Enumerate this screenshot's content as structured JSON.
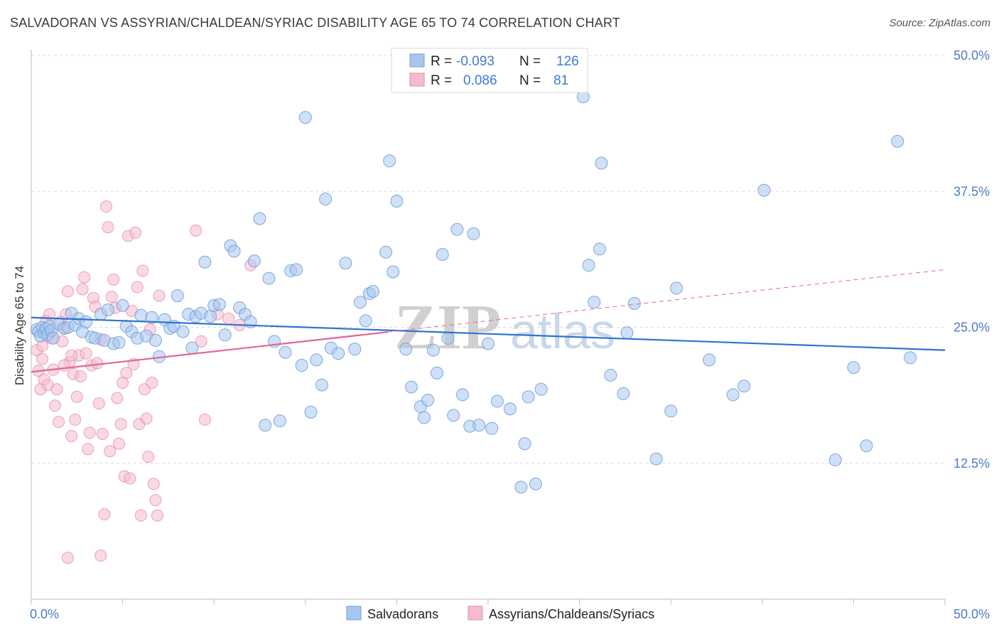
{
  "title": "SALVADORAN VS ASSYRIAN/CHALDEAN/SYRIAC DISABILITY AGE 65 TO 74 CORRELATION CHART",
  "source": "Source: ZipAtlas.com",
  "watermark": {
    "part1": "ZIP",
    "part2": "atlas"
  },
  "colors": {
    "blue": "#6fa0dc",
    "blue_fill": "#a9c6ee",
    "blue_line": "#2f73d0",
    "pink": "#e88aa8",
    "pink_fill": "#f4bccd",
    "pink_line": "#e0679a",
    "tick_text": "#4b7bc8"
  },
  "legend": {
    "rows": [
      {
        "r_label": "R =",
        "r_value": "-0.093",
        "n_label": "N =",
        "n_value": "126"
      },
      {
        "r_label": "R =",
        "r_value": "0.086",
        "n_label": "N =",
        "n_value": "81"
      }
    ]
  },
  "bottom_legend": [
    "Salvadorans",
    "Assyrians/Chaldeans/Syriacs"
  ],
  "chart_data": {
    "type": "scatter",
    "title": "SALVADORAN VS ASSYRIAN/CHALDEAN/SYRIAC DISABILITY AGE 65 TO 74 CORRELATION CHART",
    "xlabel": "",
    "ylabel": "Disability Age 65 to 74",
    "xlim": [
      0,
      50
    ],
    "ylim": [
      0,
      50
    ],
    "x_tick_labels": [
      "0.0%",
      "50.0%"
    ],
    "y_tick_labels": [
      "12.5%",
      "25.0%",
      "37.5%",
      "50.0%"
    ],
    "y_ticks": [
      12.5,
      25.0,
      37.5,
      50.0
    ],
    "grid": true,
    "legend_position": "top-center",
    "series": [
      {
        "name": "Salvadorans",
        "color": "#6fa0dc",
        "trend": {
          "x": [
            0,
            50
          ],
          "y": [
            25.9,
            22.9
          ],
          "solid_until": 50
        },
        "points": [
          [
            0.3,
            24.8
          ],
          [
            0.4,
            24.6
          ],
          [
            0.5,
            24.2
          ],
          [
            0.6,
            25.0
          ],
          [
            0.7,
            24.5
          ],
          [
            0.8,
            24.9
          ],
          [
            0.9,
            24.3
          ],
          [
            1.0,
            25.1
          ],
          [
            1.1,
            24.7
          ],
          [
            1.2,
            24.0
          ],
          [
            1.5,
            25.3
          ],
          [
            1.8,
            24.9
          ],
          [
            2.0,
            25.0
          ],
          [
            2.2,
            26.3
          ],
          [
            2.4,
            25.2
          ],
          [
            2.6,
            25.8
          ],
          [
            2.8,
            24.6
          ],
          [
            3.0,
            25.5
          ],
          [
            3.3,
            24.1
          ],
          [
            3.5,
            24.0
          ],
          [
            3.8,
            26.2
          ],
          [
            4.0,
            23.8
          ],
          [
            4.2,
            26.6
          ],
          [
            4.5,
            23.5
          ],
          [
            4.8,
            23.6
          ],
          [
            5.0,
            27.0
          ],
          [
            5.2,
            25.1
          ],
          [
            5.5,
            24.6
          ],
          [
            5.8,
            24.0
          ],
          [
            6.0,
            26.1
          ],
          [
            6.3,
            24.2
          ],
          [
            6.6,
            25.9
          ],
          [
            6.8,
            23.8
          ],
          [
            7.0,
            22.3
          ],
          [
            7.3,
            25.7
          ],
          [
            7.6,
            24.9
          ],
          [
            7.8,
            25.1
          ],
          [
            8.0,
            27.9
          ],
          [
            8.3,
            24.6
          ],
          [
            8.6,
            26.2
          ],
          [
            8.8,
            23.1
          ],
          [
            9.0,
            26.0
          ],
          [
            9.3,
            26.3
          ],
          [
            9.5,
            31.0
          ],
          [
            9.8,
            26.0
          ],
          [
            10.0,
            27.0
          ],
          [
            10.3,
            27.1
          ],
          [
            10.6,
            24.3
          ],
          [
            10.9,
            32.5
          ],
          [
            11.1,
            32.0
          ],
          [
            11.4,
            26.8
          ],
          [
            11.7,
            26.2
          ],
          [
            12.0,
            25.5
          ],
          [
            12.2,
            31.1
          ],
          [
            12.5,
            35.0
          ],
          [
            12.8,
            16.0
          ],
          [
            13.0,
            29.5
          ],
          [
            13.3,
            23.7
          ],
          [
            13.6,
            16.4
          ],
          [
            13.9,
            22.7
          ],
          [
            14.2,
            30.2
          ],
          [
            14.5,
            30.3
          ],
          [
            14.8,
            21.5
          ],
          [
            15.0,
            44.3
          ],
          [
            15.3,
            17.2
          ],
          [
            15.6,
            22.0
          ],
          [
            15.9,
            19.7
          ],
          [
            16.1,
            36.8
          ],
          [
            16.4,
            23.1
          ],
          [
            16.8,
            22.6
          ],
          [
            17.2,
            30.9
          ],
          [
            17.7,
            23.0
          ],
          [
            18.0,
            27.3
          ],
          [
            18.3,
            25.6
          ],
          [
            18.5,
            28.1
          ],
          [
            18.7,
            28.3
          ],
          [
            19.4,
            31.9
          ],
          [
            19.6,
            40.3
          ],
          [
            19.8,
            30.1
          ],
          [
            20.0,
            36.6
          ],
          [
            20.5,
            23.0
          ],
          [
            20.8,
            19.5
          ],
          [
            21.3,
            17.7
          ],
          [
            21.5,
            16.7
          ],
          [
            21.7,
            18.3
          ],
          [
            22.0,
            22.9
          ],
          [
            22.2,
            20.8
          ],
          [
            22.5,
            31.7
          ],
          [
            22.8,
            24.0
          ],
          [
            23.1,
            16.9
          ],
          [
            23.3,
            34.0
          ],
          [
            23.6,
            18.8
          ],
          [
            24.0,
            15.9
          ],
          [
            24.2,
            33.6
          ],
          [
            24.5,
            16.0
          ],
          [
            25.0,
            23.5
          ],
          [
            25.2,
            15.7
          ],
          [
            25.5,
            18.2
          ],
          [
            26.2,
            17.5
          ],
          [
            26.8,
            10.3
          ],
          [
            27.0,
            14.3
          ],
          [
            27.2,
            18.6
          ],
          [
            27.6,
            10.6
          ],
          [
            27.9,
            19.3
          ],
          [
            28.0,
            49.8
          ],
          [
            30.2,
            46.2
          ],
          [
            30.5,
            30.7
          ],
          [
            30.8,
            27.3
          ],
          [
            31.1,
            32.2
          ],
          [
            31.2,
            40.1
          ],
          [
            31.7,
            20.6
          ],
          [
            32.4,
            18.9
          ],
          [
            32.6,
            24.5
          ],
          [
            33.0,
            27.2
          ],
          [
            34.2,
            12.9
          ],
          [
            35.0,
            17.3
          ],
          [
            35.3,
            28.6
          ],
          [
            37.1,
            22.0
          ],
          [
            38.4,
            18.8
          ],
          [
            39.0,
            19.6
          ],
          [
            40.1,
            37.6
          ],
          [
            44.0,
            12.8
          ],
          [
            45.0,
            21.3
          ],
          [
            45.7,
            14.1
          ],
          [
            47.4,
            42.1
          ],
          [
            48.1,
            22.2
          ]
        ]
      },
      {
        "name": "Assyrians/Chaldeans/Syriacs",
        "color": "#e88aa8",
        "trend": {
          "x": [
            0,
            50
          ],
          "y": [
            20.9,
            30.3
          ],
          "solid_until": 19.5
        },
        "points": [
          [
            0.3,
            22.9
          ],
          [
            0.4,
            21.0
          ],
          [
            0.5,
            19.3
          ],
          [
            0.6,
            22.1
          ],
          [
            0.7,
            20.2
          ],
          [
            0.8,
            25.6
          ],
          [
            0.9,
            19.7
          ],
          [
            1.0,
            26.2
          ],
          [
            1.1,
            24.0
          ],
          [
            1.2,
            21.1
          ],
          [
            1.3,
            17.8
          ],
          [
            1.4,
            19.3
          ],
          [
            1.5,
            16.3
          ],
          [
            1.6,
            25.5
          ],
          [
            1.7,
            23.7
          ],
          [
            1.8,
            24.9
          ],
          [
            1.9,
            26.2
          ],
          [
            2.0,
            28.3
          ],
          [
            2.1,
            21.8
          ],
          [
            2.2,
            15.0
          ],
          [
            2.3,
            20.7
          ],
          [
            2.4,
            16.5
          ],
          [
            2.5,
            18.6
          ],
          [
            2.6,
            22.4
          ],
          [
            2.7,
            20.5
          ],
          [
            2.8,
            28.5
          ],
          [
            2.9,
            29.6
          ],
          [
            3.0,
            22.6
          ],
          [
            3.1,
            13.8
          ],
          [
            3.2,
            15.3
          ],
          [
            3.3,
            21.5
          ],
          [
            3.4,
            27.7
          ],
          [
            3.5,
            26.9
          ],
          [
            3.6,
            21.7
          ],
          [
            3.7,
            18.0
          ],
          [
            3.8,
            23.9
          ],
          [
            3.9,
            15.2
          ],
          [
            4.0,
            7.8
          ],
          [
            4.1,
            36.1
          ],
          [
            4.2,
            34.2
          ],
          [
            4.3,
            13.6
          ],
          [
            4.4,
            27.8
          ],
          [
            4.5,
            29.4
          ],
          [
            4.6,
            26.8
          ],
          [
            4.7,
            18.5
          ],
          [
            4.8,
            14.3
          ],
          [
            4.9,
            16.1
          ],
          [
            5.0,
            19.9
          ],
          [
            5.1,
            11.3
          ],
          [
            5.2,
            20.8
          ],
          [
            5.3,
            33.4
          ],
          [
            5.4,
            11.1
          ],
          [
            5.5,
            26.5
          ],
          [
            5.6,
            21.6
          ],
          [
            5.7,
            33.7
          ],
          [
            5.8,
            28.7
          ],
          [
            5.9,
            16.1
          ],
          [
            6.0,
            7.7
          ],
          [
            6.1,
            30.2
          ],
          [
            6.2,
            19.3
          ],
          [
            6.3,
            16.6
          ],
          [
            6.4,
            13.1
          ],
          [
            6.5,
            24.8
          ],
          [
            6.6,
            19.9
          ],
          [
            6.7,
            10.6
          ],
          [
            6.8,
            9.1
          ],
          [
            6.9,
            7.7
          ],
          [
            7.0,
            27.9
          ],
          [
            9.0,
            33.9
          ],
          [
            9.3,
            23.7
          ],
          [
            9.5,
            16.5
          ],
          [
            10.2,
            26.2
          ],
          [
            10.8,
            25.8
          ],
          [
            11.4,
            25.2
          ],
          [
            12.0,
            30.7
          ],
          [
            2.0,
            3.8
          ],
          [
            3.8,
            4.0
          ],
          [
            1.0,
            24.4
          ],
          [
            0.6,
            23.3
          ],
          [
            1.8,
            21.5
          ],
          [
            2.2,
            22.4
          ]
        ]
      }
    ]
  }
}
